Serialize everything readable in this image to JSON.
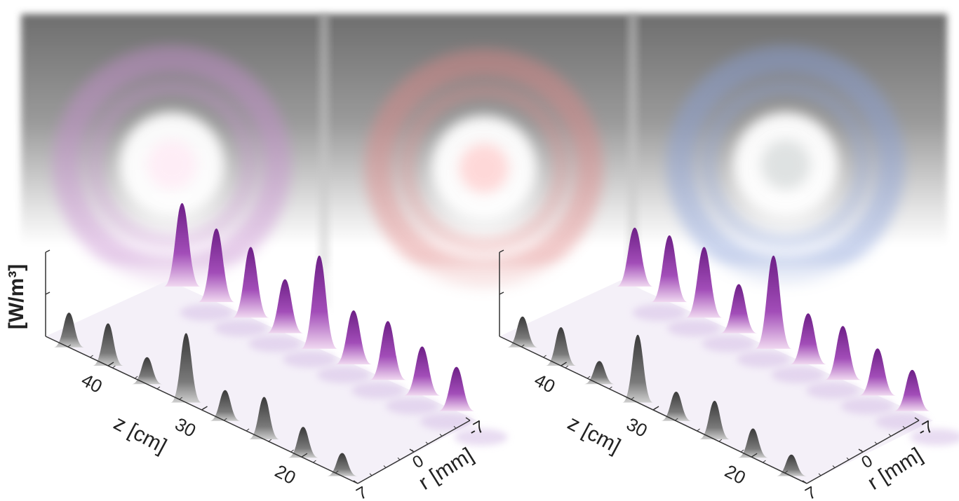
{
  "chart_data": [
    {
      "type": "surface",
      "panels_above": [
        {
          "name": "intensity-image-left",
          "ring_color": "#c890d0",
          "core_color": "#ffeaf5"
        },
        {
          "name": "intensity-image-middle",
          "ring_color": "#e08888",
          "core_color": "#ffd0d0"
        },
        {
          "name": "intensity-image-right",
          "ring_color": "#8aa0d8",
          "core_color": "#d8dcdc"
        }
      ],
      "ylabel": "[W/m³]",
      "xlabel": "z [cm]",
      "rlabel": "r [mm]",
      "z_ticks": [
        "40",
        "30",
        "20"
      ],
      "r_ticks": [
        "-7",
        "0",
        "7"
      ],
      "colors": {
        "front_peaks": "#555555",
        "back_peaks": "#8a2a9e",
        "floor_tint": "#d9c4e8"
      },
      "back_peaks": [
        0.85,
        0.75,
        0.72,
        0.55,
        0.95,
        0.55,
        0.6,
        0.5,
        0.45
      ],
      "front_peaks": [
        0.45,
        0.55,
        0.35,
        0.9,
        0.4,
        0.55,
        0.4,
        0.3
      ]
    },
    {
      "type": "surface",
      "ylabel": "",
      "xlabel": "z [cm]",
      "rlabel": "r [mm]",
      "z_ticks": [
        "40",
        "30",
        "20"
      ],
      "r_ticks": [
        "-7",
        "0",
        "7"
      ],
      "colors": {
        "front_peaks": "#555555",
        "back_peaks": "#8a2a9e",
        "floor_tint": "#d9c4e8"
      },
      "back_peaks": [
        0.6,
        0.68,
        0.72,
        0.5,
        0.95,
        0.52,
        0.55,
        0.48,
        0.42
      ],
      "front_peaks": [
        0.4,
        0.5,
        0.3,
        0.88,
        0.38,
        0.5,
        0.38,
        0.28
      ]
    }
  ]
}
